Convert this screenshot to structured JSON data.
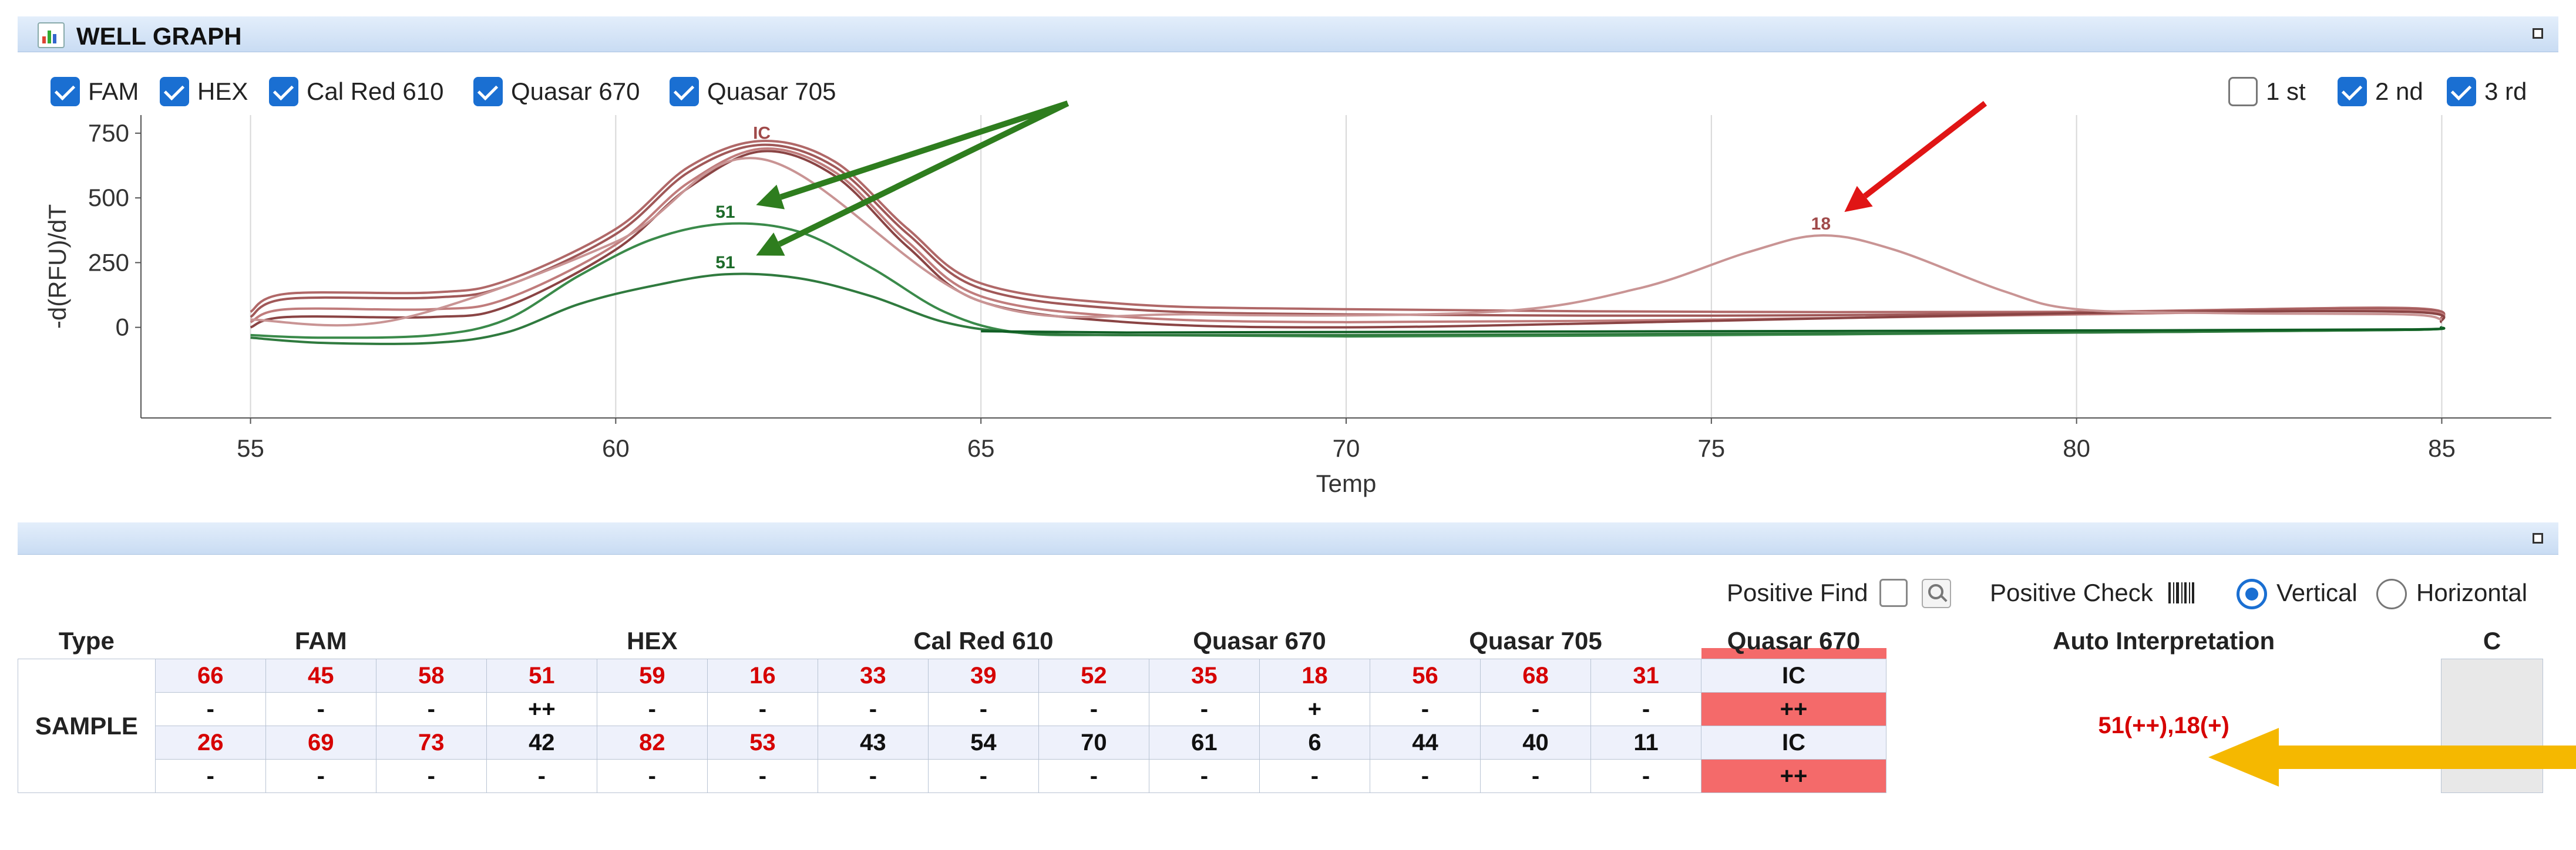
{
  "graph_panel": {
    "title": "WELL GRAPH"
  },
  "channels": [
    {
      "label": "FAM",
      "checked": true
    },
    {
      "label": "HEX",
      "checked": true
    },
    {
      "label": "Cal Red 610",
      "checked": true
    },
    {
      "label": "Quasar 670",
      "checked": true
    },
    {
      "label": "Quasar 705",
      "checked": true
    }
  ],
  "derivatives": [
    {
      "label": "1 st",
      "checked": false
    },
    {
      "label": "2 nd",
      "checked": true
    },
    {
      "label": "3 rd",
      "checked": true
    }
  ],
  "colors": {
    "accent": "#1a6fd2",
    "red_curve": "#b06868",
    "green_curve": "#3a8a4a",
    "positive_cell": "#f46a6a",
    "result_text": "#d60000",
    "arrow_green": "#2e7d1e",
    "arrow_red": "#e01515",
    "arrow_yellow": "#f5b800"
  },
  "chart_data": {
    "type": "line",
    "xlabel": "Temp",
    "ylabel": "-d(RFU)/dT",
    "xlim": [
      53.5,
      86.5
    ],
    "ylim": [
      -350,
      820
    ],
    "xticks": [
      55,
      60,
      65,
      70,
      75,
      80,
      85
    ],
    "yticks": [
      0,
      250,
      500,
      750
    ],
    "grid": true,
    "peak_labels": [
      {
        "text": "51",
        "x": 61.5,
        "y": 400,
        "series": "green_upper"
      },
      {
        "text": "51",
        "x": 61.5,
        "y": 205,
        "series": "green_lower"
      },
      {
        "text": "IC",
        "x": 62.0,
        "y": 705,
        "series": "red_ic"
      },
      {
        "text": "18",
        "x": 76.5,
        "y": 355,
        "series": "red_18"
      }
    ],
    "series": [
      {
        "color": "#b06868",
        "x": [
          55,
          55.5,
          57.5,
          58.5,
          60,
          61,
          62,
          63,
          64,
          65,
          67,
          70,
          75,
          80,
          84.5,
          85
        ],
        "y": [
          60,
          130,
          135,
          180,
          380,
          620,
          720,
          640,
          380,
          170,
          90,
          70,
          60,
          60,
          75,
          30
        ]
      },
      {
        "color": "#a05858",
        "x": [
          55,
          55.5,
          57.5,
          58.5,
          60,
          61,
          62,
          63,
          64,
          65,
          67,
          70,
          75,
          80,
          84.5,
          85
        ],
        "y": [
          40,
          110,
          115,
          160,
          360,
          600,
          705,
          620,
          360,
          150,
          70,
          50,
          45,
          55,
          70,
          30
        ]
      },
      {
        "color": "#c07c7c",
        "x": [
          55,
          55.5,
          57.5,
          58.5,
          60,
          61,
          62,
          63,
          64,
          65,
          67,
          70,
          75,
          80,
          84.5,
          85
        ],
        "y": [
          20,
          70,
          70,
          110,
          320,
          560,
          690,
          600,
          330,
          120,
          40,
          20,
          30,
          50,
          65,
          25
        ]
      },
      {
        "color": "#8a4444",
        "x": [
          55,
          55.5,
          57.5,
          58.5,
          60,
          61,
          62,
          63,
          64,
          65,
          67,
          70,
          75,
          80,
          84.5,
          85
        ],
        "y": [
          0,
          40,
          40,
          80,
          300,
          540,
          680,
          585,
          310,
          100,
          20,
          0,
          25,
          55,
          60,
          20
        ]
      },
      {
        "color": "#c99494",
        "x": [
          55,
          57,
          60,
          62,
          65,
          68,
          72,
          74,
          75.5,
          76.5,
          77.5,
          79,
          80,
          82,
          84.5,
          85
        ],
        "y": [
          30,
          30,
          330,
          650,
          100,
          50,
          60,
          150,
          290,
          355,
          300,
          140,
          70,
          55,
          50,
          30
        ]
      },
      {
        "color": "#3a8a4a",
        "x": [
          55,
          56,
          57.5,
          58.5,
          59.5,
          60.5,
          61.5,
          62.5,
          63.5,
          64.5,
          65.5,
          67,
          70,
          75,
          80,
          84.5,
          85
        ],
        "y": [
          -30,
          -40,
          -30,
          30,
          200,
          340,
          400,
          370,
          230,
          60,
          -20,
          -30,
          -35,
          -30,
          -20,
          -10,
          0
        ]
      },
      {
        "color": "#2f7a3e",
        "x": [
          55,
          56,
          57.5,
          58.5,
          59.5,
          60.5,
          61.5,
          62.5,
          63.5,
          64.5,
          65.5,
          67,
          70,
          75,
          80,
          84.5,
          85
        ],
        "y": [
          -40,
          -60,
          -60,
          -20,
          90,
          160,
          205,
          190,
          120,
          20,
          -20,
          -30,
          -30,
          -25,
          -20,
          -10,
          0
        ]
      },
      {
        "color": "#0f5e24",
        "x": [
          65,
          67,
          70,
          75,
          80,
          84.5,
          85
        ],
        "y": [
          -15,
          -20,
          -18,
          -15,
          -12,
          -8,
          0
        ]
      }
    ]
  },
  "results_panel": {
    "positive_find_label": "Positive Find",
    "positive_check_label": "Positive Check",
    "vertical_label": "Vertical",
    "horizontal_label": "Horizontal",
    "vertical_selected": true
  },
  "table": {
    "headers": {
      "type": "Type",
      "fam": "FAM",
      "hex": "HEX",
      "calred": "Cal Red 610",
      "q670": "Quasar 670",
      "q705": "Quasar 705",
      "q670b": "Quasar 670",
      "auto": "Auto  Interpretation",
      "c": "C"
    },
    "sample_label": "SAMPLE",
    "interpretation": "51(++),18(+)",
    "rows": [
      {
        "cells": [
          "66",
          "45",
          "58",
          "51",
          "59",
          "16",
          "33",
          "39",
          "52",
          "35",
          "18",
          "56",
          "68",
          "31"
        ],
        "ic": "IC",
        "color": "red"
      },
      {
        "cells": [
          "-",
          "-",
          "-",
          "++",
          "-",
          "-",
          "-",
          "-",
          "-",
          "-",
          "+",
          "-",
          "-",
          "-"
        ],
        "ic": "++",
        "color": "blk",
        "pos": [
          3,
          10
        ]
      },
      {
        "cells": [
          "26",
          "69",
          "73",
          "42",
          "82",
          "53",
          "43",
          "54",
          "70",
          "61",
          "6",
          "44",
          "40",
          "11"
        ],
        "ic": "IC",
        "color": "mixed"
      },
      {
        "cells": [
          "-",
          "-",
          "-",
          "-",
          "-",
          "-",
          "-",
          "-",
          "-",
          "-",
          "-",
          "-",
          "-",
          "-"
        ],
        "ic": "++",
        "color": "blk",
        "pos": []
      }
    ]
  }
}
